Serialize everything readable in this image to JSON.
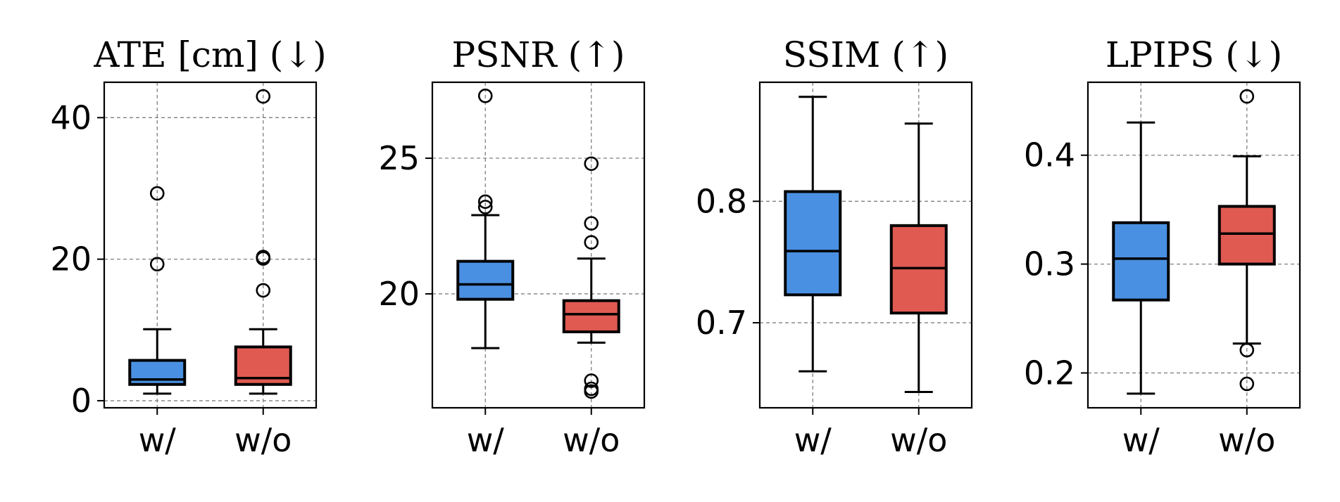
{
  "figure": {
    "description": "ablation"
  },
  "colors": {
    "with": "#4a90e2",
    "without": "#e05a52",
    "grid": "#808080",
    "frame": "#000000"
  },
  "chart_data": [
    {
      "type": "box",
      "title": "ATE [cm] (↓)",
      "categories": [
        "w/",
        "w/o"
      ],
      "ylim": [
        -1,
        45
      ],
      "yticks": [
        0,
        20,
        40
      ],
      "ytick_labels": [
        "0",
        "20",
        "40"
      ],
      "grid": true,
      "boxes": [
        {
          "name": "w/",
          "whislo": 1.0,
          "q1": 2.3,
          "med": 3.0,
          "q3": 5.7,
          "whishi": 10.1,
          "fliers": [
            19.3,
            29.3
          ]
        },
        {
          "name": "w/o",
          "whislo": 1.0,
          "q1": 2.3,
          "med": 3.2,
          "q3": 7.6,
          "whishi": 10.1,
          "fliers": [
            15.6,
            20.1,
            20.3,
            43.0
          ]
        }
      ]
    },
    {
      "type": "box",
      "title": "PSNR (↑)",
      "categories": [
        "w/",
        "w/o"
      ],
      "ylim": [
        15.8,
        27.8
      ],
      "yticks": [
        20,
        25
      ],
      "ytick_labels": [
        "20",
        "25"
      ],
      "grid": true,
      "boxes": [
        {
          "name": "w/",
          "whislo": 18.0,
          "q1": 19.8,
          "med": 20.35,
          "q3": 21.2,
          "whishi": 22.9,
          "fliers": [
            23.2,
            23.4,
            27.3
          ]
        },
        {
          "name": "w/o",
          "whislo": 18.2,
          "q1": 18.6,
          "med": 19.25,
          "q3": 19.75,
          "whishi": 21.3,
          "fliers": [
            16.4,
            16.5,
            16.8,
            21.9,
            22.6,
            24.8
          ]
        }
      ]
    },
    {
      "type": "box",
      "title": "SSIM (↑)",
      "categories": [
        "w/",
        "w/o"
      ],
      "ylim": [
        0.63,
        0.898
      ],
      "yticks": [
        0.7,
        0.8
      ],
      "ytick_labels": [
        "0.7",
        "0.8"
      ],
      "grid": true,
      "boxes": [
        {
          "name": "w/",
          "whislo": 0.66,
          "q1": 0.723,
          "med": 0.759,
          "q3": 0.808,
          "whishi": 0.886,
          "fliers": []
        },
        {
          "name": "w/o",
          "whislo": 0.643,
          "q1": 0.708,
          "med": 0.745,
          "q3": 0.78,
          "whishi": 0.864,
          "fliers": []
        }
      ]
    },
    {
      "type": "box",
      "title": "LPIPS (↓)",
      "categories": [
        "w/",
        "w/o"
      ],
      "ylim": [
        0.168,
        0.467
      ],
      "yticks": [
        0.2,
        0.3,
        0.4
      ],
      "ytick_labels": [
        "0.2",
        "0.3",
        "0.4"
      ],
      "grid": true,
      "boxes": [
        {
          "name": "w/",
          "whislo": 0.181,
          "q1": 0.267,
          "med": 0.305,
          "q3": 0.338,
          "whishi": 0.43,
          "fliers": []
        },
        {
          "name": "w/o",
          "whislo": 0.227,
          "q1": 0.3,
          "med": 0.328,
          "q3": 0.353,
          "whishi": 0.399,
          "fliers": [
            0.19,
            0.221,
            0.454
          ]
        }
      ]
    }
  ]
}
